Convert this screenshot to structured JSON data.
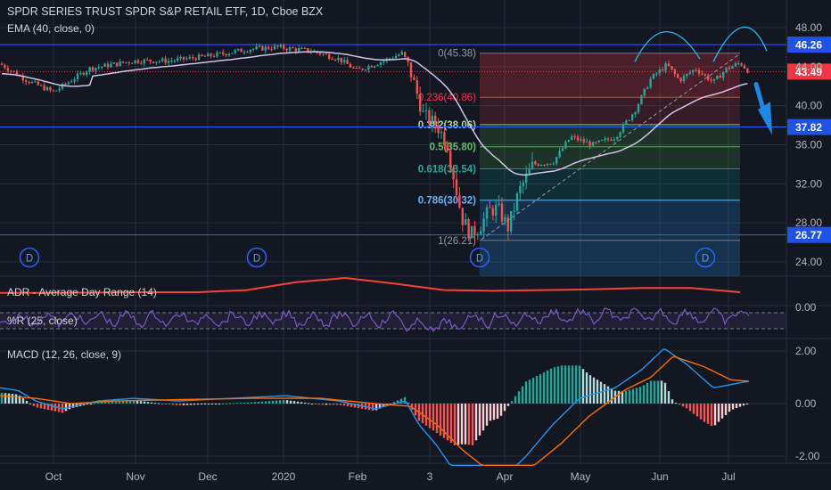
{
  "header": {
    "title": "SPDR SERIES TRUST SPDR S&P RETAIL ETF, 1D, Cboe BZX",
    "ema_label": "EMA (40, close, 0)"
  },
  "indicators": {
    "adr_label": "ADR - Average Day Range (14)",
    "wr_label": "%R (25, close)",
    "macd_label": "MACD (12, 26, close, 9)"
  },
  "colors": {
    "background": "#131722",
    "grid": "#2a2e39",
    "up": "#26a69a",
    "down": "#ef5350",
    "ema": "#d1c4e9",
    "level_line": "#2962ff",
    "current_price": "#f23645",
    "adr_line": "#f44336",
    "wr_line": "#7e57c2",
    "macd_line": "#2196f3",
    "signal_line": "#ff6d00",
    "arrow": "#1e88e5"
  },
  "chart_data": [
    {
      "type": "candlestick",
      "name": "price",
      "y_ticks": [
        "48.00",
        "44.00",
        "40.00",
        "36.00",
        "32.00",
        "28.00",
        "24.00"
      ],
      "ylim": [
        22.2,
        49.8
      ],
      "x_labels": [
        "Oct",
        "Nov",
        "Dec",
        "2020",
        "Feb",
        "3",
        "Apr",
        "May",
        "Jun",
        "Jul"
      ],
      "horizontal_levels": [
        {
          "label": "46.26",
          "value": 46.26
        },
        {
          "label": "37.82",
          "value": 37.82
        },
        {
          "label": "26.77",
          "value": 26.77
        }
      ],
      "current_price": {
        "label": "43.49",
        "value": 43.49
      },
      "fibonacci": [
        {
          "ratio": "0",
          "value": 45.38,
          "text": "0(45.38)"
        },
        {
          "ratio": "0.236",
          "value": 40.86,
          "text": "0.236(40.86)"
        },
        {
          "ratio": "0.382",
          "value": 38.06,
          "text": "0.382(38.06)"
        },
        {
          "ratio": "0.5",
          "value": 35.8,
          "text": "0.5(35.80)"
        },
        {
          "ratio": "0.618",
          "value": 33.54,
          "text": "0.618(33.54)"
        },
        {
          "ratio": "0.786",
          "value": 30.32,
          "text": "0.786(30.32)"
        },
        {
          "ratio": "1",
          "value": 26.21,
          "text": "1(26.21)"
        }
      ],
      "dividend_markers": [
        "D",
        "D",
        "D",
        "D"
      ]
    },
    {
      "type": "line",
      "name": "adr",
      "description_values": [
        0.9,
        0.9,
        0.95,
        1.0,
        1.0,
        1.3,
        2.4,
        3.0,
        2.2,
        1.3,
        1.2,
        1.3,
        1.4,
        1.6,
        1.6,
        1.0
      ],
      "ylim": [
        0.0,
        3.5
      ]
    },
    {
      "type": "line",
      "name": "williams_r",
      "y_ticks": [
        "0.00"
      ],
      "ylim": [
        -100,
        0
      ]
    },
    {
      "type": "macd",
      "name": "macd",
      "y_ticks": [
        "2.00",
        "0.00",
        "-2.00"
      ],
      "ylim": [
        -2.2,
        2.2
      ]
    }
  ]
}
